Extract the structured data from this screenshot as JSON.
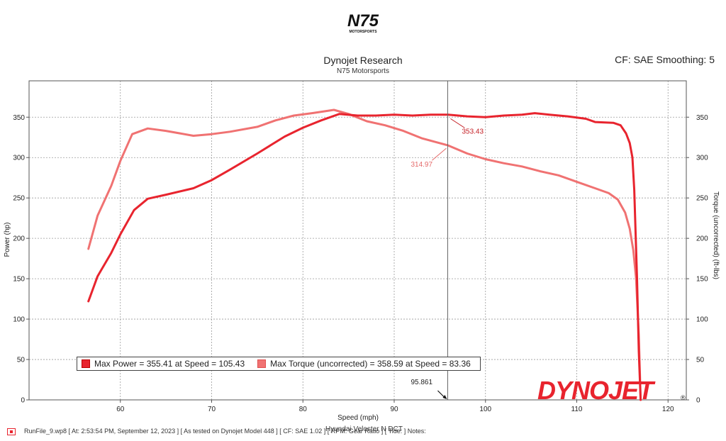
{
  "header": {
    "logo_text": "N75 MOTORSPORTS",
    "title": "Dynojet Research",
    "subtitle": "N75 Motorsports",
    "cf_text": "CF: SAE Smoothing: 5"
  },
  "legend": {
    "power_label": "Max Power = 355.41 at Speed = 105.43",
    "torque_label": "Max Torque (uncorrected) = 358.59 at Speed = 83.36"
  },
  "brand": {
    "name": "DYNOJET",
    "registered": "®"
  },
  "footer": {
    "text": "RunFile_9.wp8 [ At: 2:53:54 PM, September 12, 2023 ] [ As tested on Dynojet Model 448 ] [ CF: SAE 1.02 ] [ RPM: Gear Ratio ] [ Tide: ] Notes:",
    "vehicle": "Hyundai Veloster N DCT"
  },
  "colors": {
    "power": "#e8242e",
    "torque": "#f07272",
    "grid": "#9a9a9a",
    "cursor": "#666666"
  },
  "chart_data": {
    "type": "line",
    "xlabel": "Speed (mph)",
    "ylabel_left": "Power (hp)",
    "ylabel_right": "Torque (uncorrected) (ft-lbs)",
    "xlim": [
      50,
      122
    ],
    "ylim": [
      0,
      395
    ],
    "x_ticks": [
      60,
      70,
      80,
      90,
      100,
      110,
      120
    ],
    "y_ticks": [
      0,
      50,
      100,
      150,
      200,
      250,
      300,
      350
    ],
    "grid": true,
    "cursor": {
      "x": 95.861,
      "label": "95.861",
      "power_value": "353.43",
      "torque_value": "314.97"
    },
    "series": [
      {
        "name": "Power",
        "color": "#e8242e",
        "points": [
          [
            56.5,
            122
          ],
          [
            57.5,
            153
          ],
          [
            59,
            182
          ],
          [
            60,
            205
          ],
          [
            61.5,
            235
          ],
          [
            63,
            249
          ],
          [
            65,
            254
          ],
          [
            68,
            262
          ],
          [
            70,
            272
          ],
          [
            72,
            285
          ],
          [
            75,
            305
          ],
          [
            78,
            326
          ],
          [
            80,
            337
          ],
          [
            82,
            346
          ],
          [
            84,
            354
          ],
          [
            86,
            352
          ],
          [
            88,
            352
          ],
          [
            90,
            353
          ],
          [
            92,
            352
          ],
          [
            94,
            353
          ],
          [
            95.9,
            353
          ],
          [
            98,
            351
          ],
          [
            100,
            350
          ],
          [
            102,
            352
          ],
          [
            104,
            353
          ],
          [
            105.4,
            355
          ],
          [
            107,
            353
          ],
          [
            109,
            351
          ],
          [
            111,
            348
          ],
          [
            112,
            344
          ],
          [
            114,
            343
          ],
          [
            114.8,
            340
          ],
          [
            115.4,
            330
          ],
          [
            115.8,
            318
          ],
          [
            116.1,
            300
          ],
          [
            116.3,
            260
          ],
          [
            116.6,
            150
          ],
          [
            116.8,
            60
          ],
          [
            117,
            0
          ]
        ]
      },
      {
        "name": "Torque",
        "color": "#f07272",
        "points": [
          [
            56.5,
            187
          ],
          [
            57.5,
            228
          ],
          [
            59,
            265
          ],
          [
            60,
            296
          ],
          [
            61.3,
            329
          ],
          [
            63,
            336
          ],
          [
            65,
            333
          ],
          [
            68,
            327
          ],
          [
            70,
            329
          ],
          [
            72,
            332
          ],
          [
            75,
            338
          ],
          [
            77,
            346
          ],
          [
            79,
            352
          ],
          [
            81,
            355
          ],
          [
            83.4,
            359
          ],
          [
            85,
            354
          ],
          [
            87,
            345
          ],
          [
            89,
            340
          ],
          [
            91,
            333
          ],
          [
            93,
            324
          ],
          [
            95.9,
            315
          ],
          [
            98,
            305
          ],
          [
            100,
            298
          ],
          [
            102,
            293
          ],
          [
            104,
            289
          ],
          [
            106,
            283
          ],
          [
            108,
            278
          ],
          [
            110,
            270
          ],
          [
            112,
            262
          ],
          [
            113.5,
            256
          ],
          [
            114.5,
            248
          ],
          [
            115.3,
            232
          ],
          [
            115.8,
            212
          ],
          [
            116.2,
            185
          ],
          [
            116.5,
            150
          ],
          [
            116.8,
            80
          ],
          [
            117,
            0
          ]
        ]
      }
    ]
  }
}
